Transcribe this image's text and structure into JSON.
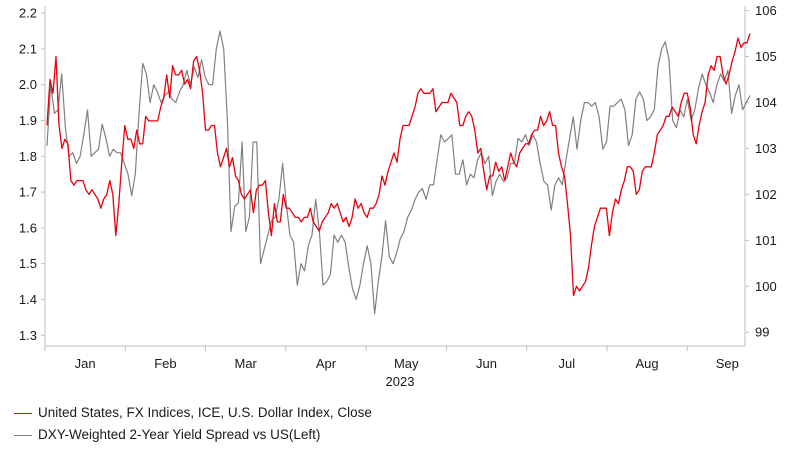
{
  "chart_data": {
    "type": "line",
    "year_label": "2023",
    "x_ticks": [
      "Jan",
      "Feb",
      "Mar",
      "Apr",
      "May",
      "Jun",
      "Jul",
      "Aug",
      "Sep"
    ],
    "left_axis": {
      "ticks": [
        "1.3",
        "1.4",
        "1.5",
        "1.6",
        "1.7",
        "1.8",
        "1.9",
        "2.0",
        "2.1",
        "2.2"
      ],
      "range": [
        1.27,
        2.22
      ]
    },
    "right_axis": {
      "ticks": [
        "99",
        "100",
        "101",
        "102",
        "103",
        "104",
        "105",
        "106"
      ],
      "range": [
        98.7,
        106.1
      ]
    },
    "grid": false,
    "legend_position": "bottom-left",
    "series": [
      {
        "name": "United States, FX Indices, ICE, U.S. Dollar Index, Close",
        "axis": "right",
        "color": "#e8000b",
        "values": [
          103.5,
          104.5,
          104.2,
          105.0,
          103.5,
          103.0,
          103.2,
          103.1,
          102.3,
          102.2,
          102.3,
          102.3,
          102.3,
          102.1,
          102.0,
          102.1,
          102.0,
          101.9,
          101.7,
          101.9,
          102.0,
          102.3,
          102.0,
          101.1,
          101.8,
          102.7,
          103.5,
          103.2,
          103.2,
          103.0,
          103.4,
          103.1,
          103.1,
          103.7,
          103.6,
          103.6,
          103.6,
          103.6,
          103.9,
          104.1,
          104.6,
          104.1,
          104.8,
          104.6,
          104.6,
          104.7,
          104.4,
          104.5,
          104.3,
          104.9,
          105.0,
          104.7,
          104.2,
          103.4,
          103.4,
          103.5,
          103.5,
          102.9,
          102.6,
          102.8,
          103.0,
          102.6,
          102.8,
          102.4,
          102.3,
          102.0,
          101.9,
          102.0,
          102.1,
          101.6,
          102.1,
          102.2,
          102.2,
          102.3,
          101.6,
          101.1,
          101.8,
          101.4,
          101.4,
          102.0,
          101.7,
          101.7,
          101.6,
          101.5,
          101.5,
          101.4,
          101.5,
          101.5,
          101.7,
          101.4,
          101.3,
          101.2,
          101.4,
          101.5,
          101.6,
          101.8,
          101.7,
          101.8,
          101.6,
          101.4,
          101.5,
          101.3,
          101.5,
          101.9,
          101.7,
          101.8,
          101.6,
          101.5,
          101.7,
          101.7,
          101.8,
          102.0,
          102.4,
          102.2,
          102.5,
          102.7,
          102.9,
          102.7,
          103.2,
          103.5,
          103.5,
          103.5,
          103.7,
          103.9,
          104.2,
          104.3,
          104.2,
          104.2,
          104.2,
          104.3,
          103.8,
          103.9,
          104.0,
          104.0,
          104.0,
          104.2,
          104.1,
          104.0,
          103.5,
          103.5,
          103.7,
          103.8,
          103.7,
          103.4,
          102.9,
          103.0,
          102.5,
          102.1,
          102.4,
          102.4,
          102.7,
          102.5,
          102.6,
          102.3,
          102.6,
          102.9,
          102.7,
          102.6,
          102.9,
          103.0,
          103.1,
          103.1,
          103.3,
          103.4,
          103.4,
          103.7,
          103.5,
          103.6,
          103.8,
          103.5,
          103.5,
          102.9,
          102.6,
          102.4,
          101.8,
          101.1,
          99.8,
          100.0,
          99.9,
          100.0,
          100.1,
          100.4,
          100.9,
          101.3,
          101.5,
          101.7,
          101.7,
          101.7,
          101.1,
          101.6,
          101.9,
          101.8,
          102.1,
          102.3,
          102.6,
          102.6,
          102.5,
          102.0,
          102.1,
          102.5,
          102.6,
          102.6,
          102.6,
          102.9,
          103.3,
          103.4,
          103.5,
          103.7,
          103.7,
          103.9,
          103.8,
          103.7,
          104.0,
          104.2,
          104.2,
          103.9,
          103.3,
          103.1,
          103.5,
          103.8,
          104.0,
          104.6,
          104.8,
          104.7,
          105.0,
          105.0,
          104.6,
          104.4,
          104.6,
          104.9,
          105.1,
          105.4,
          105.2,
          105.3,
          105.3,
          105.5
        ]
      },
      {
        "name": "DXY-Weighted 2-Year Yield Spread vs US(Left)",
        "axis": "left",
        "color": "#808080",
        "values": [
          1.83,
          2.0,
          1.92,
          1.93,
          2.03,
          1.88,
          1.8,
          1.81,
          1.78,
          1.8,
          1.86,
          1.93,
          1.8,
          1.81,
          1.82,
          1.89,
          1.85,
          1.8,
          1.82,
          1.81,
          1.81,
          1.78,
          1.75,
          1.69,
          1.75,
          1.92,
          2.06,
          2.03,
          1.95,
          2.0,
          1.98,
          1.95,
          1.97,
          1.98,
          1.96,
          1.95,
          1.98,
          2.0,
          2.04,
          2.0,
          2.05,
          2.02,
          2.07,
          2.02,
          2.0,
          2.0,
          2.1,
          2.15,
          2.1,
          1.9,
          1.59,
          1.66,
          1.67,
          1.84,
          1.59,
          1.63,
          1.84,
          1.84,
          1.5,
          1.54,
          1.58,
          1.62,
          1.63,
          1.68,
          1.78,
          1.67,
          1.58,
          1.56,
          1.44,
          1.5,
          1.48,
          1.55,
          1.58,
          1.68,
          1.59,
          1.44,
          1.45,
          1.47,
          1.58,
          1.56,
          1.58,
          1.56,
          1.49,
          1.43,
          1.4,
          1.44,
          1.5,
          1.55,
          1.5,
          1.36,
          1.45,
          1.52,
          1.62,
          1.52,
          1.5,
          1.53,
          1.57,
          1.59,
          1.63,
          1.65,
          1.68,
          1.7,
          1.71,
          1.68,
          1.72,
          1.72,
          1.79,
          1.86,
          1.84,
          1.85,
          1.86,
          1.75,
          1.75,
          1.79,
          1.72,
          1.75,
          1.74,
          1.79,
          1.81,
          1.78,
          1.8,
          1.69,
          1.73,
          1.75,
          1.73,
          1.74,
          1.78,
          1.78,
          1.85,
          1.84,
          1.86,
          1.83,
          1.86,
          1.84,
          1.78,
          1.73,
          1.72,
          1.65,
          1.72,
          1.74,
          1.72,
          1.79,
          1.85,
          1.91,
          1.82,
          1.9,
          1.95,
          1.95,
          1.94,
          1.95,
          1.91,
          1.82,
          1.84,
          1.94,
          1.94,
          1.95,
          1.96,
          1.93,
          1.83,
          1.86,
          1.96,
          1.98,
          1.96,
          1.9,
          1.91,
          1.93,
          2.05,
          2.1,
          2.12,
          2.07,
          1.9,
          1.88,
          1.93,
          1.91,
          1.96,
          1.9,
          1.93,
          1.99,
          2.03,
          2.0,
          1.98,
          1.95,
          2.0,
          2.03,
          2.01,
          2.04,
          1.92,
          1.97,
          2.0,
          1.93,
          1.95,
          1.97
        ]
      }
    ]
  }
}
